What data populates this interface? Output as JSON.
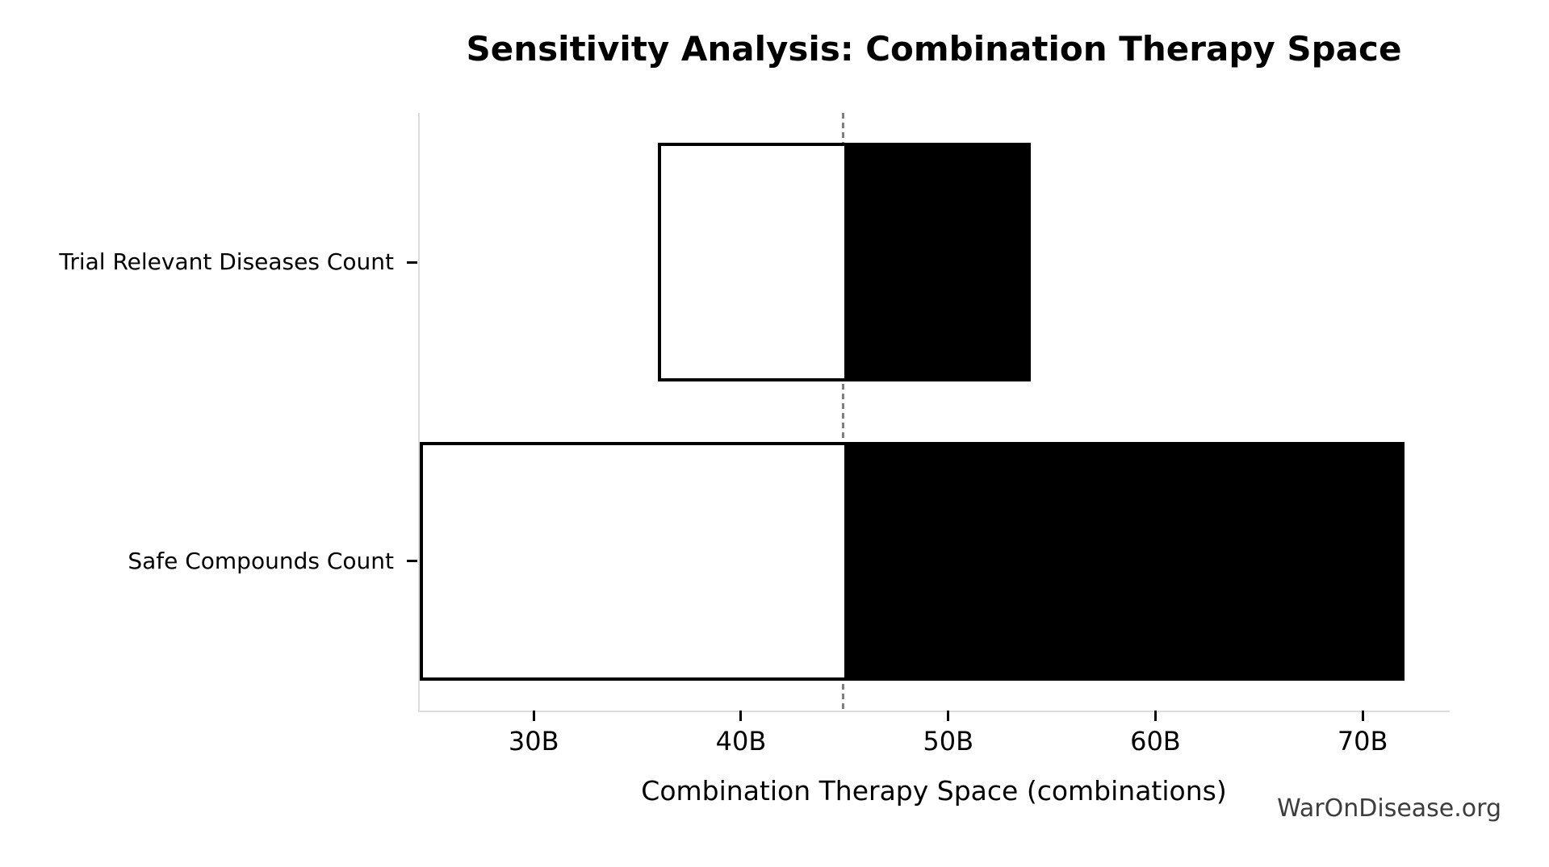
{
  "title": "Sensitivity Analysis: Combination Therapy Space",
  "watermark": "WarOnDisease.org",
  "chart_data": {
    "type": "bar",
    "subtype": "tornado-sensitivity",
    "orientation": "horizontal",
    "title": "Sensitivity Analysis: Combination Therapy Space",
    "xlabel": "Combination Therapy Space (combinations)",
    "unit_suffix": "B",
    "value_scale_note": "values in billions of combinations",
    "baseline_x": 45,
    "xlim": [
      24.5,
      74.2
    ],
    "grid": false,
    "legend": "none",
    "x_ticks": [
      {
        "value": 30,
        "label": "30B"
      },
      {
        "value": 40,
        "label": "40B"
      },
      {
        "value": 50,
        "label": "50B"
      },
      {
        "value": 60,
        "label": "60B"
      },
      {
        "value": 70,
        "label": "70B"
      }
    ],
    "rows": [
      {
        "label": "Trial Relevant Diseases Count",
        "low": 36,
        "high": 54
      },
      {
        "label": "Safe Compounds Count",
        "low": 24.5,
        "high": 72
      }
    ],
    "colors": {
      "bar_fill_below_baseline": "#ffffff",
      "bar_fill_above_baseline": "#000000",
      "bar_edge": "#000000",
      "baseline_line": "#7f7f7f",
      "spine": "#dcdcdc",
      "tick": "#000000",
      "text": "#000000",
      "watermark_text": "#3d3d3d"
    },
    "baseline_line_style": "dashed-vertical"
  }
}
